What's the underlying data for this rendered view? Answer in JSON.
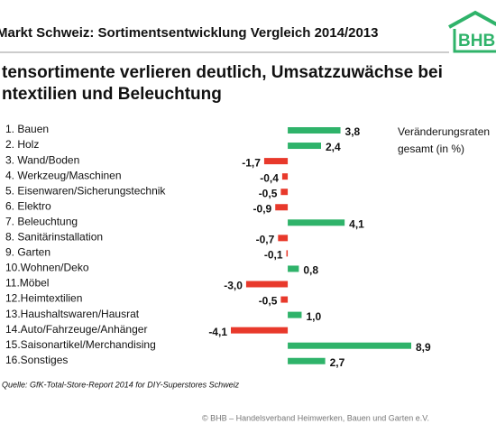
{
  "header": {
    "title": "Markt Schweiz: Sortimentsentwicklung Vergleich 2014/2013",
    "logo": "BHB"
  },
  "chart_data": {
    "type": "bar",
    "orientation": "horizontal",
    "title": [
      "tensortimente verlieren deutlich, Umsatzzuwächse bei",
      "ntextilien und Beleuchtung"
    ],
    "categories": [
      "1. Bauen",
      "2. Holz",
      "3. Wand/Boden",
      "4. Werkzeug/Maschinen",
      "5. Eisenwaren/Sicherungstechnik",
      "6. Elektro",
      "7. Beleuchtung",
      "8. Sanitärinstallation",
      "9. Garten",
      "10.Wohnen/Deko",
      "11.Möbel",
      "12.Heimtextilien",
      "13.Haushaltswaren/Hausrat",
      "14.Auto/Fahrzeuge/Anhänger",
      "15.Saisonartikel/Merchandising",
      "16.Sonstiges"
    ],
    "values": [
      3.8,
      2.4,
      -1.7,
      -0.4,
      -0.5,
      -0.9,
      4.1,
      -0.7,
      -0.1,
      0.8,
      -3.0,
      -0.5,
      1.0,
      -4.1,
      8.9,
      2.7
    ],
    "value_labels": [
      "3,8",
      "2,4",
      "-1,7",
      "-0,4",
      "-0,5",
      "-0,9",
      "4,1",
      "-0,7",
      "-0,1",
      "0,8",
      "-3,0",
      "-0,5",
      "1,0",
      "-4,1",
      "8,9",
      "2,7"
    ],
    "positive_color": "#2fb36a",
    "negative_color": "#e8392b",
    "annotation": [
      "Veränderungsraten",
      "gesamt (in %)"
    ]
  },
  "source": "Quelle: GfK-Total-Store-Report 2014 for DIY-Superstores Schweiz",
  "footer": "© BHB – Handelsverband Heimwerken, Bauen und Garten e.V."
}
